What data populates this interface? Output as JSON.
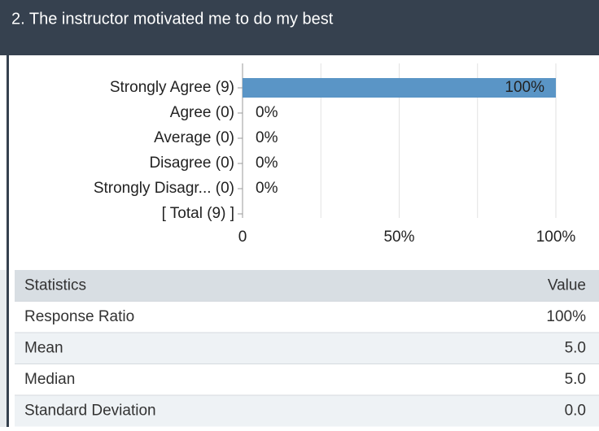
{
  "header": {
    "title": "2. The instructor motivated me to do my best"
  },
  "chart_data": {
    "type": "hbar",
    "categories": [
      "Strongly Agree (9)",
      "Agree (0)",
      "Average (0)",
      "Disagree (0)",
      "Strongly Disagr... (0)",
      "[ Total (9) ]"
    ],
    "values": [
      100,
      0,
      0,
      0,
      0,
      null
    ],
    "value_labels": [
      "100%",
      "0%",
      "0%",
      "0%",
      "0%",
      null
    ],
    "color": "#5a95c6",
    "xlim": [
      0,
      100
    ],
    "xticks": [
      0,
      {
        "value": 50,
        "label": "50%"
      },
      {
        "value": 100,
        "label": "100%"
      }
    ],
    "xgrid": [
      0,
      25,
      50,
      75,
      100
    ],
    "grid": true
  },
  "table": {
    "header": [
      "Statistics",
      "Value"
    ],
    "rows": [
      [
        "Response Ratio",
        "100%"
      ],
      [
        "Mean",
        "5.0"
      ],
      [
        "Median",
        "5.0"
      ],
      [
        "Standard Deviation",
        "0.0"
      ]
    ]
  }
}
